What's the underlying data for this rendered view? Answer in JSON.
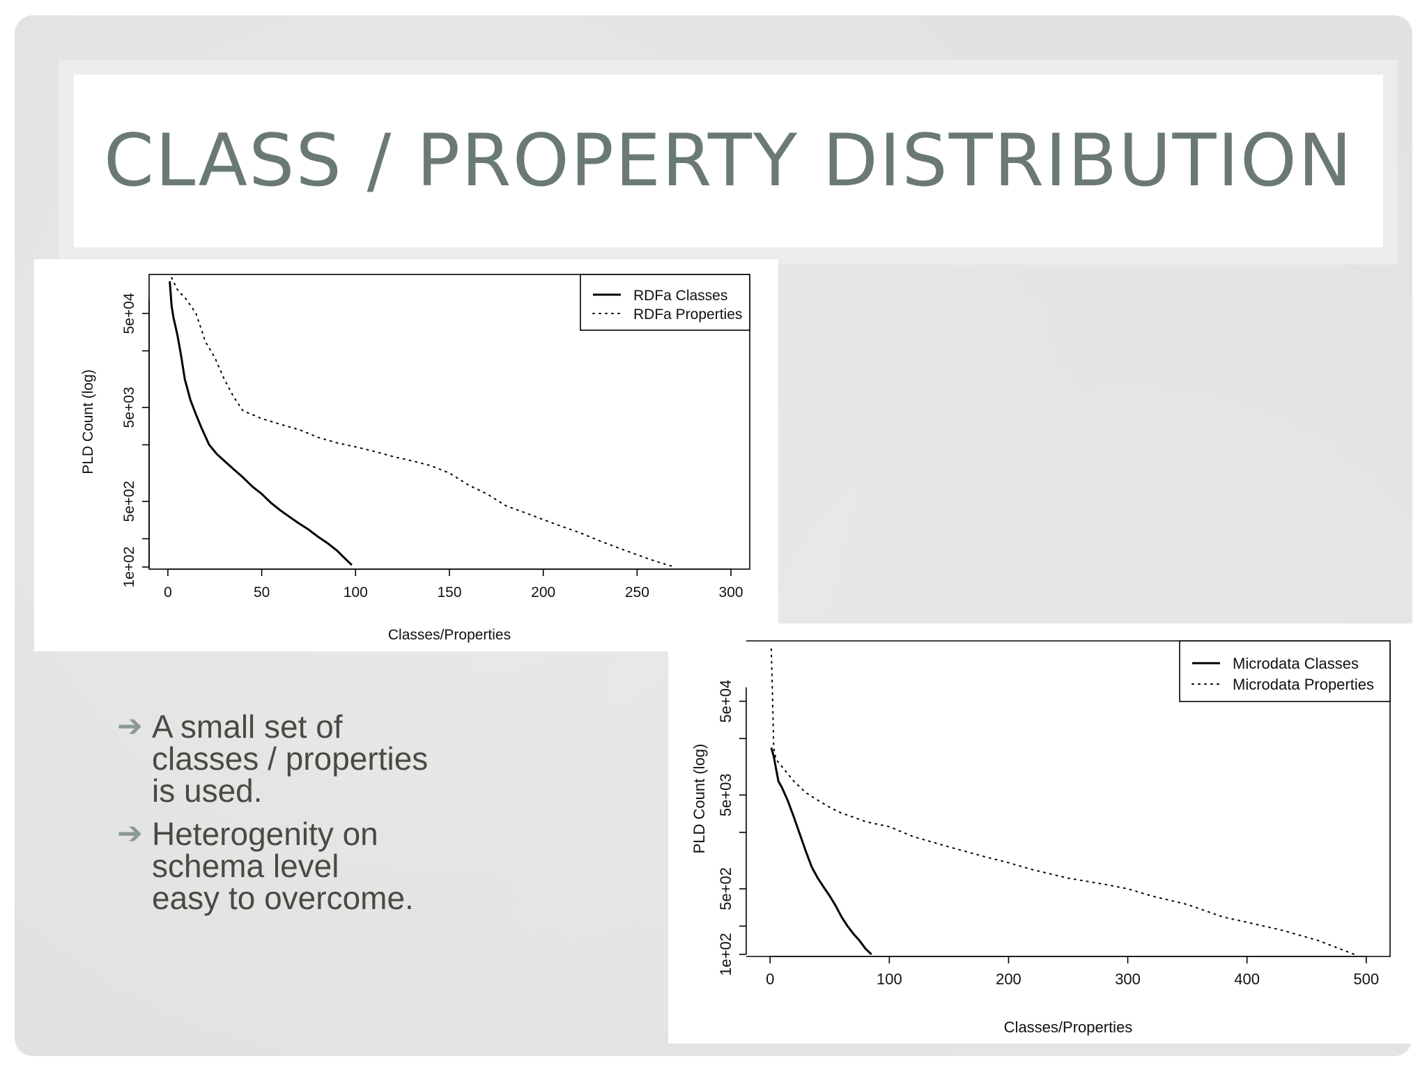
{
  "slide": {
    "title": "CLASS / PROPERTY DISTRIBUTION",
    "bullets": [
      {
        "arrow": "➔",
        "text": "A small set of\nclasses / properties\nis used."
      },
      {
        "arrow": "➔",
        "text": "Heterogenity on\nschema level\neasy to overcome."
      }
    ]
  },
  "chart_data": [
    {
      "type": "line",
      "xlabel": "Classes/Properties",
      "ylabel": "PLD Count (log)",
      "y_scale": "log",
      "xlim": [
        -10,
        310
      ],
      "ylim": [
        95,
        130000
      ],
      "x_ticks": [
        0,
        50,
        100,
        150,
        200,
        250,
        300
      ],
      "y_ticks": [
        {
          "value": 100,
          "label": "1e+02"
        },
        {
          "value": 200,
          "label": ""
        },
        {
          "value": 500,
          "label": "5e+02"
        },
        {
          "value": 2000,
          "label": ""
        },
        {
          "value": 5000,
          "label": "5e+03"
        },
        {
          "value": 20000,
          "label": ""
        },
        {
          "value": 50000,
          "label": "5e+04"
        }
      ],
      "legend_position": "top-right",
      "series": [
        {
          "name": "RDFa Classes",
          "style": "solid",
          "x": [
            1,
            2,
            3,
            5,
            7,
            9,
            12,
            15,
            18,
            22,
            26,
            30,
            35,
            40,
            45,
            50,
            55,
            60,
            65,
            70,
            75,
            80,
            85,
            90,
            95,
            98
          ],
          "y": [
            110000,
            60000,
            45000,
            30000,
            18000,
            10000,
            6000,
            4200,
            3000,
            2000,
            1600,
            1350,
            1100,
            900,
            720,
            600,
            480,
            400,
            340,
            290,
            250,
            210,
            180,
            150,
            120,
            105
          ]
        },
        {
          "name": "RDFa Properties",
          "style": "dotted",
          "x": [
            2,
            5,
            10,
            15,
            20,
            25,
            30,
            35,
            40,
            45,
            50,
            60,
            70,
            80,
            90,
            100,
            110,
            120,
            130,
            140,
            150,
            160,
            170,
            180,
            190,
            200,
            210,
            220,
            230,
            240,
            250,
            260,
            270
          ],
          "y": [
            120000,
            90000,
            70000,
            50000,
            25000,
            17000,
            10000,
            6500,
            4600,
            4200,
            3800,
            3300,
            2900,
            2400,
            2100,
            1900,
            1700,
            1500,
            1350,
            1200,
            1000,
            750,
            600,
            450,
            380,
            320,
            270,
            230,
            190,
            160,
            135,
            115,
            100
          ]
        }
      ]
    },
    {
      "type": "line",
      "xlabel": "Classes/Properties",
      "ylabel": "PLD Count (log)",
      "y_scale": "log",
      "xlim": [
        -20,
        520
      ],
      "ylim": [
        95,
        220000
      ],
      "x_ticks": [
        0,
        100,
        200,
        300,
        400,
        500
      ],
      "y_ticks": [
        {
          "value": 100,
          "label": "1e+02"
        },
        {
          "value": 200,
          "label": ""
        },
        {
          "value": 500,
          "label": "5e+02"
        },
        {
          "value": 2000,
          "label": ""
        },
        {
          "value": 5000,
          "label": "5e+03"
        },
        {
          "value": 20000,
          "label": ""
        },
        {
          "value": 50000,
          "label": "5e+04"
        }
      ],
      "legend_position": "top-right",
      "series": [
        {
          "name": "Microdata Classes",
          "style": "solid",
          "x": [
            1,
            3,
            5,
            7,
            10,
            15,
            20,
            25,
            30,
            35,
            40,
            45,
            50,
            55,
            60,
            65,
            70,
            75,
            80,
            85
          ],
          "y": [
            16000,
            13000,
            9500,
            7000,
            6000,
            4300,
            2900,
            1900,
            1250,
            850,
            650,
            520,
            420,
            330,
            250,
            200,
            165,
            140,
            115,
            100
          ]
        },
        {
          "name": "Microdata Properties",
          "style": "dotted",
          "x": [
            1,
            2,
            3,
            5,
            10,
            20,
            30,
            40,
            50,
            60,
            70,
            80,
            100,
            120,
            150,
            180,
            200,
            220,
            250,
            280,
            300,
            320,
            350,
            380,
            400,
            430,
            460,
            490
          ],
          "y": [
            180000,
            60000,
            16000,
            12000,
            10000,
            7000,
            5300,
            4400,
            3700,
            3200,
            2900,
            2600,
            2300,
            1800,
            1400,
            1100,
            950,
            800,
            650,
            560,
            500,
            420,
            340,
            250,
            220,
            180,
            140,
            100
          ]
        }
      ]
    }
  ]
}
